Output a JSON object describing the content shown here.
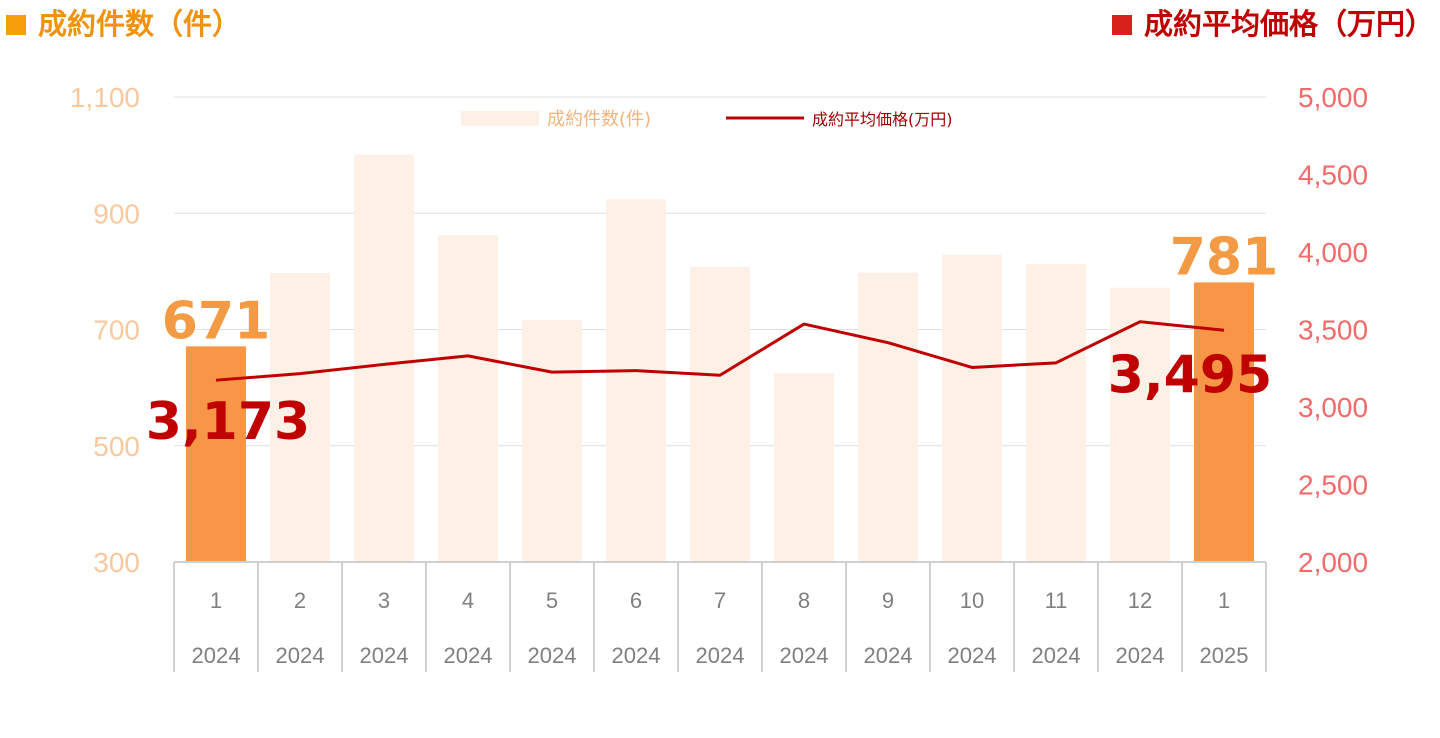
{
  "headers": {
    "left": "成約件数（件）",
    "right": "成約平均価格（万円）"
  },
  "colors": {
    "bar_faded": "#FDF0E6",
    "bar_highlight": "#F79646",
    "line": "#C00000",
    "left_axis": "#F8C99E",
    "right_axis": "#F26A6A",
    "left_header": "#F0920C",
    "right_header": "#C00000"
  },
  "chart_data": {
    "type": "bar+line",
    "categories": [
      {
        "month": "1",
        "year": "2024"
      },
      {
        "month": "2",
        "year": "2024"
      },
      {
        "month": "3",
        "year": "2024"
      },
      {
        "month": "4",
        "year": "2024"
      },
      {
        "month": "5",
        "year": "2024"
      },
      {
        "month": "6",
        "year": "2024"
      },
      {
        "month": "7",
        "year": "2024"
      },
      {
        "month": "8",
        "year": "2024"
      },
      {
        "month": "9",
        "year": "2024"
      },
      {
        "month": "10",
        "year": "2024"
      },
      {
        "month": "11",
        "year": "2024"
      },
      {
        "month": "12",
        "year": "2024"
      },
      {
        "month": "1",
        "year": "2025"
      }
    ],
    "series": [
      {
        "name": "成約件数(件)",
        "axis": "left",
        "kind": "bar",
        "values": [
          671,
          797,
          1001,
          862,
          716,
          924,
          808,
          625,
          798,
          829,
          813,
          772,
          781
        ]
      },
      {
        "name": "成約平均価格(万円)",
        "axis": "right",
        "kind": "line",
        "values": [
          3173,
          3215,
          3275,
          3330,
          3225,
          3235,
          3205,
          3535,
          3415,
          3255,
          3285,
          3550,
          3495
        ]
      }
    ],
    "left_axis": {
      "min": 300,
      "max": 1100,
      "ticks": [
        "300",
        "500",
        "700",
        "900",
        "1,100"
      ]
    },
    "right_axis": {
      "min": 2000,
      "max": 5000,
      "ticks": [
        "2,000",
        "2,500",
        "3,000",
        "3,500",
        "4,000",
        "4,500",
        "5,000"
      ]
    },
    "highlighted_bars": [
      0,
      12
    ],
    "callouts": [
      {
        "text": "671",
        "series": "bar",
        "index": 0
      },
      {
        "text": "781",
        "series": "bar",
        "index": 12
      },
      {
        "text": "3,173",
        "series": "line",
        "index": 0
      },
      {
        "text": "3,495",
        "series": "line",
        "index": 12
      }
    ],
    "legend_position": "top-center",
    "grid": "horizontal"
  }
}
